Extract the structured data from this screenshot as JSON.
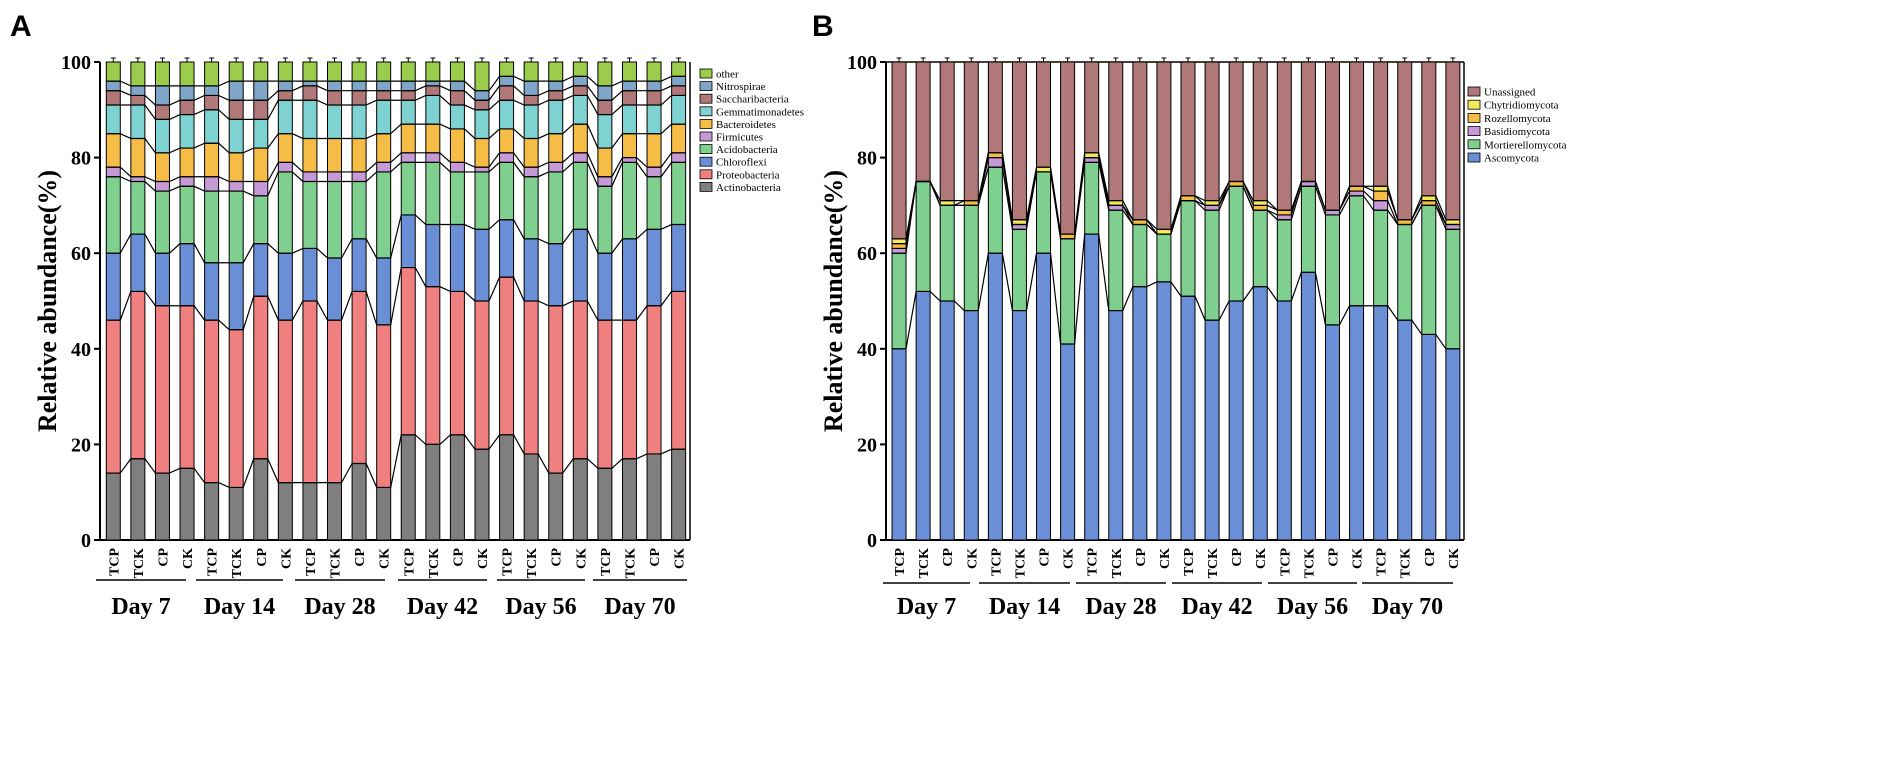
{
  "chart_data": [
    {
      "panel": "A",
      "type": "bar",
      "stacked": true,
      "ylabel": "Relative abundance(%)",
      "xlabel": "",
      "ylim": [
        0,
        100
      ],
      "yticks": [
        0,
        20,
        40,
        60,
        80,
        100
      ],
      "categories": [
        "TCP",
        "TCK",
        "CP",
        "CK",
        "TCP",
        "TCK",
        "CP",
        "CK",
        "TCP",
        "TCK",
        "CP",
        "CK",
        "TCP",
        "TCK",
        "CP",
        "CK",
        "TCP",
        "TCK",
        "CP",
        "CK",
        "TCP",
        "TCK",
        "CP",
        "CK"
      ],
      "groups": [
        "Day 7",
        "Day 14",
        "Day 28",
        "Day 42",
        "Day 56",
        "Day 70"
      ],
      "legend_position": "top-right",
      "series": [
        {
          "name": "Actinobacteria",
          "color": "#7f7f7f",
          "values": [
            14,
            17,
            14,
            15,
            12,
            11,
            17,
            12,
            12,
            12,
            16,
            11,
            22,
            20,
            22,
            19,
            22,
            18,
            14,
            17,
            15,
            17,
            18,
            19
          ]
        },
        {
          "name": "Proteobacteria",
          "color": "#f07f7f",
          "values": [
            32,
            35,
            35,
            34,
            34,
            33,
            34,
            34,
            38,
            34,
            36,
            34,
            35,
            33,
            30,
            31,
            33,
            32,
            35,
            33,
            31,
            29,
            31,
            33
          ]
        },
        {
          "name": "Chloroflexi",
          "color": "#6a8fd6",
          "values": [
            14,
            12,
            11,
            13,
            12,
            14,
            11,
            14,
            11,
            13,
            11,
            14,
            11,
            13,
            14,
            15,
            12,
            13,
            13,
            15,
            14,
            17,
            16,
            14
          ]
        },
        {
          "name": "Acidobacteria",
          "color": "#7fcf8f",
          "values": [
            16,
            11,
            13,
            12,
            15,
            15,
            10,
            17,
            14,
            16,
            12,
            18,
            11,
            13,
            11,
            12,
            12,
            13,
            15,
            14,
            14,
            16,
            11,
            13
          ]
        },
        {
          "name": "Firmicutes",
          "color": "#c59ad6",
          "values": [
            2,
            1,
            2,
            2,
            3,
            2,
            3,
            2,
            2,
            2,
            2,
            2,
            2,
            2,
            2,
            1,
            2,
            2,
            2,
            2,
            2,
            1,
            2,
            2
          ]
        },
        {
          "name": "Bacteroidetes",
          "color": "#f5bd45",
          "values": [
            7,
            8,
            6,
            6,
            7,
            6,
            7,
            6,
            7,
            7,
            7,
            6,
            6,
            6,
            7,
            6,
            5,
            6,
            6,
            6,
            6,
            5,
            7,
            6
          ]
        },
        {
          "name": "Gemmatimonadetes",
          "color": "#7fd2d2",
          "values": [
            6,
            7,
            7,
            7,
            7,
            7,
            6,
            7,
            8,
            7,
            7,
            7,
            5,
            6,
            5,
            6,
            6,
            7,
            7,
            6,
            7,
            6,
            6,
            6
          ]
        },
        {
          "name": "Saccharibacteria",
          "color": "#b07878",
          "values": [
            3,
            2,
            3,
            3,
            3,
            4,
            4,
            2,
            3,
            3,
            3,
            2,
            2,
            2,
            3,
            2,
            3,
            2,
            2,
            2,
            3,
            3,
            3,
            2
          ]
        },
        {
          "name": "Nitrospirae",
          "color": "#7fa6c8",
          "values": [
            2,
            2,
            4,
            3,
            2,
            4,
            4,
            2,
            1,
            2,
            2,
            2,
            2,
            1,
            2,
            2,
            2,
            3,
            2,
            2,
            3,
            2,
            2,
            2
          ]
        },
        {
          "name": "other",
          "color": "#9ccc4c",
          "values": [
            4,
            5,
            5,
            5,
            5,
            4,
            4,
            4,
            4,
            4,
            4,
            4,
            4,
            4,
            4,
            6,
            3,
            4,
            4,
            3,
            5,
            4,
            4,
            3
          ]
        }
      ]
    },
    {
      "panel": "B",
      "type": "bar",
      "stacked": true,
      "ylabel": "Relative abundance(%)",
      "xlabel": "",
      "ylim": [
        0,
        100
      ],
      "yticks": [
        0,
        20,
        40,
        60,
        80,
        100
      ],
      "categories": [
        "TCP",
        "TCK",
        "CP",
        "CK",
        "TCP",
        "TCK",
        "CP",
        "CK",
        "TCP",
        "TCK",
        "CP",
        "CK",
        "TCP",
        "TCK",
        "CP",
        "CK",
        "TCP",
        "TCK",
        "CP",
        "CK",
        "TCP",
        "TCK",
        "CP",
        "CK"
      ],
      "groups": [
        "Day 7",
        "Day 14",
        "Day 28",
        "Day 42",
        "Day 56",
        "Day 70"
      ],
      "legend_position": "top-right",
      "series": [
        {
          "name": "Ascomycota",
          "color": "#6a8fd6",
          "values": [
            40,
            52,
            50,
            48,
            60,
            48,
            60,
            41,
            64,
            48,
            53,
            54,
            51,
            46,
            50,
            53,
            50,
            56,
            45,
            49,
            49,
            46,
            43,
            40
          ]
        },
        {
          "name": "Mortierellomycota",
          "color": "#7fcf8f",
          "values": [
            20,
            23,
            20,
            22,
            18,
            17,
            17,
            22,
            15,
            21,
            13,
            10,
            20,
            23,
            24,
            16,
            17,
            18,
            23,
            23,
            20,
            20,
            27,
            25
          ]
        },
        {
          "name": "Basidiomycota",
          "color": "#c59ad6",
          "values": [
            1,
            0,
            0,
            0,
            2,
            1,
            0,
            0,
            1,
            1,
            0,
            0,
            0,
            1,
            0,
            0,
            1,
            1,
            1,
            1,
            2,
            0,
            0,
            1
          ]
        },
        {
          "name": "Rozellomycota",
          "color": "#f5bd45",
          "values": [
            1,
            0,
            0,
            1,
            1,
            0,
            0,
            1,
            0,
            0,
            1,
            0,
            1,
            0,
            1,
            1,
            1,
            0,
            0,
            1,
            2,
            1,
            1,
            0
          ]
        },
        {
          "name": "Chytridiomycota",
          "color": "#f2ea5a",
          "values": [
            1,
            0,
            1,
            0,
            0,
            1,
            1,
            0,
            1,
            1,
            0,
            1,
            0,
            1,
            0,
            1,
            0,
            0,
            0,
            0,
            1,
            0,
            1,
            1
          ]
        },
        {
          "name": "Unassigned",
          "color": "#b07878",
          "values": [
            37,
            25,
            29,
            29,
            19,
            33,
            22,
            36,
            19,
            29,
            33,
            35,
            28,
            29,
            25,
            29,
            31,
            25,
            31,
            26,
            26,
            33,
            28,
            33
          ]
        }
      ]
    }
  ]
}
